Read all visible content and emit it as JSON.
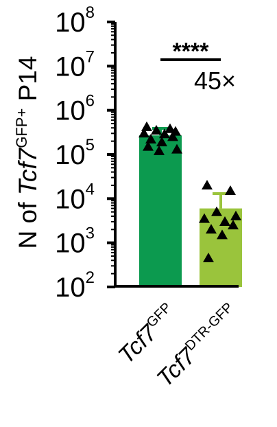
{
  "chart_data": {
    "type": "bar",
    "log_scale": true,
    "ylim": [
      100,
      100000000
    ],
    "y_ticks": [
      {
        "base": "10",
        "exp": "2"
      },
      {
        "base": "10",
        "exp": "3"
      },
      {
        "base": "10",
        "exp": "4"
      },
      {
        "base": "10",
        "exp": "5"
      },
      {
        "base": "10",
        "exp": "6"
      },
      {
        "base": "10",
        "exp": "7"
      },
      {
        "base": "10",
        "exp": "8"
      }
    ],
    "ylabel": {
      "prefix": "N of ",
      "gene": "Tcf7",
      "superscript": "GFP+",
      "suffix": " P14"
    },
    "categories": [
      {
        "gene": "Tcf7",
        "superscript": "GFP"
      },
      {
        "gene": "Tcf7",
        "superscript": "DTR-GFP"
      }
    ],
    "bar_colors": [
      "#0c9a4f",
      "#9ac43c"
    ],
    "values": [
      270000,
      6000
    ],
    "error_upper": [
      390000,
      13000
    ],
    "points": [
      [
        420000,
        380000,
        350000,
        330000,
        300000,
        290000,
        250000,
        220000,
        190000,
        150000,
        130000,
        120000
      ],
      [
        20000,
        15000,
        5000,
        4000,
        3500,
        3000,
        2500,
        2000,
        1500,
        450
      ]
    ],
    "significance": "****",
    "fold_change": "45×"
  }
}
